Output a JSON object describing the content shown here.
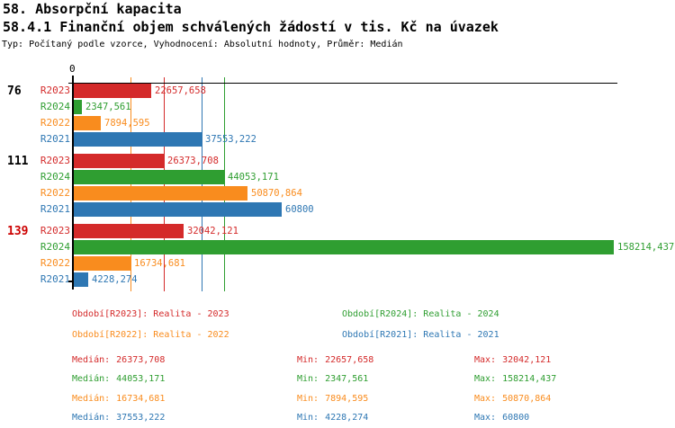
{
  "title": "58. Absorpční kapacita",
  "subtitle": "58.4.1 Finanční objem schválených žádostí v tis. Kč na úvazek",
  "meta": "Typ: Počítaný podle vzorce, Vyhodnocení: Absolutní hodnoty, Průměr: Medián",
  "chart_data": {
    "type": "bar",
    "orientation": "horizontal",
    "title": "58.4.1 Finanční objem schválených žádostí v tis. Kč na úvazek",
    "x_axis": {
      "zero_label": "0",
      "min": 0,
      "max": 158214.437,
      "gridlines": "median-markers"
    },
    "series": [
      {
        "id": "R2023",
        "label": "R2023",
        "color": "#d42a2a",
        "median": 26373.708,
        "median_label": "26373,708"
      },
      {
        "id": "R2024",
        "label": "R2024",
        "color": "#2f9e31",
        "median": 44053.171,
        "median_label": "44053,171"
      },
      {
        "id": "R2022",
        "label": "R2022",
        "color": "#f98c1e",
        "median": 16734.681,
        "median_label": "16734,681"
      },
      {
        "id": "R2021",
        "label": "R2021",
        "color": "#2e77b3",
        "median": 37553.222,
        "median_label": "37553,222"
      }
    ],
    "groups": [
      {
        "label": "76",
        "label_color": "#000000",
        "bars": [
          {
            "series": "R2023",
            "value": 22657.658,
            "value_label": "22657,658"
          },
          {
            "series": "R2024",
            "value": 2347.561,
            "value_label": "2347,561"
          },
          {
            "series": "R2022",
            "value": 7894.595,
            "value_label": "7894,595"
          },
          {
            "series": "R2021",
            "value": 37553.222,
            "value_label": "37553,222"
          }
        ]
      },
      {
        "label": "111",
        "label_color": "#000000",
        "bars": [
          {
            "series": "R2023",
            "value": 26373.708,
            "value_label": "26373,708"
          },
          {
            "series": "R2024",
            "value": 44053.171,
            "value_label": "44053,171"
          },
          {
            "series": "R2022",
            "value": 50870.864,
            "value_label": "50870,864"
          },
          {
            "series": "R2021",
            "value": 60800,
            "value_label": "60800"
          }
        ]
      },
      {
        "label": "139",
        "label_color": "#cc0000",
        "bars": [
          {
            "series": "R2023",
            "value": 32042.121,
            "value_label": "32042,121"
          },
          {
            "series": "R2024",
            "value": 158214.437,
            "value_label": "158214,437"
          },
          {
            "series": "R2022",
            "value": 16734.681,
            "value_label": "16734,681"
          },
          {
            "series": "R2021",
            "value": 4228.274,
            "value_label": "4228,274"
          }
        ]
      }
    ]
  },
  "legend": {
    "items": [
      {
        "series": "R2023",
        "text": "Období[R2023]: Realita - 2023"
      },
      {
        "series": "R2024",
        "text": "Období[R2024]: Realita - 2024"
      },
      {
        "series": "R2022",
        "text": "Období[R2022]: Realita - 2022"
      },
      {
        "series": "R2021",
        "text": "Období[R2021]: Realita - 2021"
      }
    ]
  },
  "stats": {
    "median_label": "Medián:",
    "min_label": "Min:",
    "max_label": "Max:",
    "rows": [
      {
        "series": "R2023",
        "median": "26373,708",
        "min": "22657,658",
        "max": "32042,121"
      },
      {
        "series": "R2024",
        "median": "44053,171",
        "min": "2347,561",
        "max": "158214,437"
      },
      {
        "series": "R2022",
        "median": "16734,681",
        "min": "7894,595",
        "max": "50870,864"
      },
      {
        "series": "R2021",
        "median": "37553,222",
        "min": "4228,274",
        "max": "60800"
      }
    ]
  }
}
